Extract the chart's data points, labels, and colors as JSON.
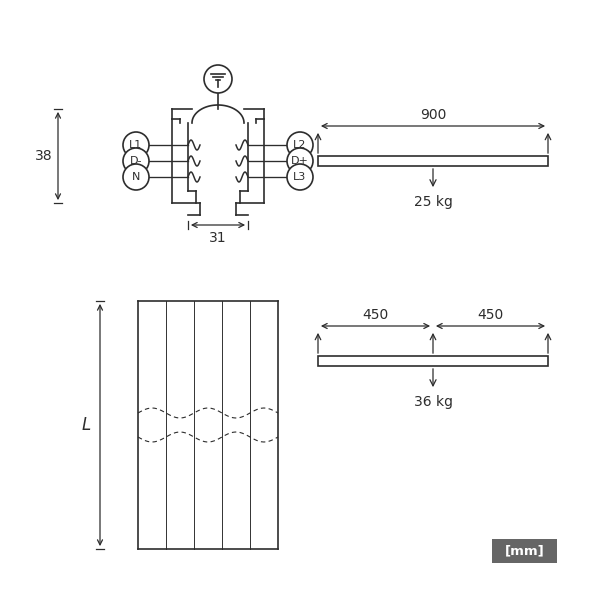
{
  "bg_color": "#ffffff",
  "line_color": "#2d2d2d",
  "mm_box_color": "#666666",
  "mm_text_color": "#ffffff",
  "labels_left": [
    "L1",
    "D-",
    "N"
  ],
  "labels_right": [
    "L2",
    "D+",
    "L3"
  ],
  "dim_38": "38",
  "dim_31": "31",
  "dim_L": "L",
  "dim_900": "900",
  "dim_25kg": "25 kg",
  "dim_450a": "450",
  "dim_450b": "450",
  "dim_36kg": "36 kg",
  "mm_label": "[mm]"
}
